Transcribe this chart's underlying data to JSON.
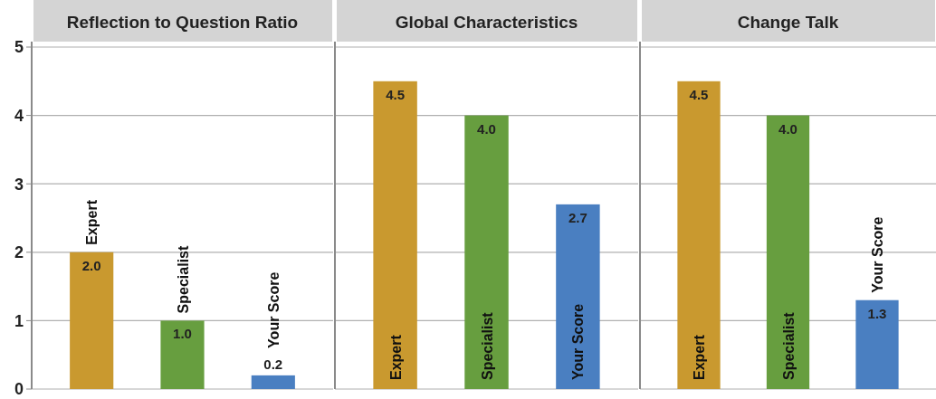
{
  "chart_data": [
    {
      "type": "bar",
      "title": "Reflection to Question Ratio",
      "categories": [
        "Expert",
        "Specialist",
        "Your Score"
      ],
      "values": [
        2.0,
        1.0,
        0.2
      ],
      "value_labels": [
        "2.0",
        "1.0",
        "0.2"
      ],
      "colors": [
        "#c9992f",
        "#679e3f",
        "#4a7fc1"
      ],
      "ylim": [
        0,
        5
      ],
      "yticks": [
        0,
        1,
        2,
        3,
        4,
        5
      ],
      "grid": "y",
      "tick_labels": "y"
    },
    {
      "type": "bar",
      "title": "Global Characteristics",
      "categories": [
        "Expert",
        "Specialist",
        "Your Score"
      ],
      "values": [
        4.5,
        4.0,
        2.7
      ],
      "value_labels": [
        "4.5",
        "4.0",
        "2.7"
      ],
      "colors": [
        "#c9992f",
        "#679e3f",
        "#4a7fc1"
      ],
      "ylim": [
        0,
        5
      ],
      "yticks": [
        0,
        1,
        2,
        3,
        4,
        5
      ],
      "grid": "y",
      "tick_labels": false
    },
    {
      "type": "bar",
      "title": "Change Talk",
      "categories": [
        "Expert",
        "Specialist",
        "Your Score"
      ],
      "values": [
        4.5,
        4.0,
        1.3
      ],
      "value_labels": [
        "4.5",
        "4.0",
        "1.3"
      ],
      "colors": [
        "#c9992f",
        "#679e3f",
        "#4a7fc1"
      ],
      "ylim": [
        0,
        5
      ],
      "yticks": [
        0,
        1,
        2,
        3,
        4,
        5
      ],
      "grid": "y",
      "tick_labels": false
    }
  ]
}
